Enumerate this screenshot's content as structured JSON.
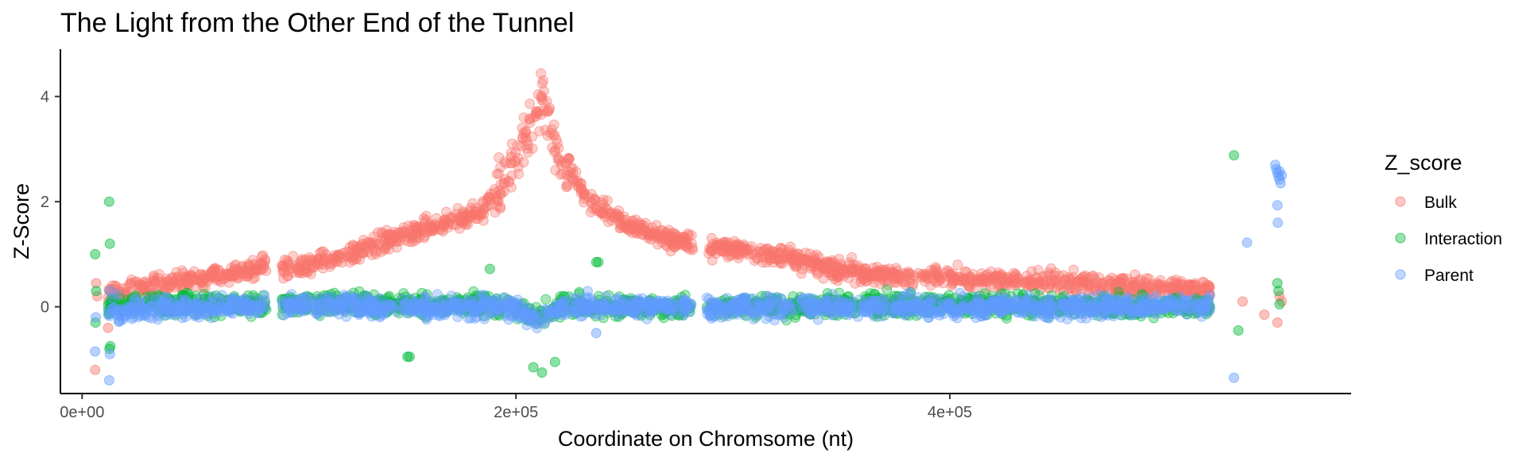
{
  "chart_data": {
    "type": "scatter",
    "title": "The Light from the Other End of the Tunnel",
    "xlabel": "Coordinate on Chromsome (nt)",
    "ylabel": "Z-Score",
    "xlim": [
      -10000,
      585000
    ],
    "ylim": [
      -1.65,
      4.9
    ],
    "x_ticks": [
      0,
      200000,
      400000
    ],
    "x_tick_labels": [
      "0e+00",
      "2e+05",
      "4e+05"
    ],
    "y_ticks": [
      0,
      2,
      4
    ],
    "y_tick_labels": [
      "0",
      "2",
      "4"
    ],
    "grid": false,
    "legend": {
      "title": "Z_score",
      "placement": "right",
      "entries": [
        "Bulk",
        "Interaction",
        "Parent"
      ]
    },
    "point_alpha": 0.35,
    "series": [
      {
        "name": "Bulk",
        "color": "#F8766D",
        "trend": [
          [
            6000,
            0.22
          ],
          [
            12000,
            0.25
          ],
          [
            30000,
            0.38
          ],
          [
            50000,
            0.5
          ],
          [
            70000,
            0.68
          ],
          [
            85000,
            0.78
          ],
          [
            95000,
            0.72
          ],
          [
            110000,
            0.85
          ],
          [
            125000,
            1.0
          ],
          [
            140000,
            1.25
          ],
          [
            155000,
            1.45
          ],
          [
            170000,
            1.6
          ],
          [
            185000,
            1.85
          ],
          [
            195000,
            2.4
          ],
          [
            205000,
            3.2
          ],
          [
            212000,
            4.0
          ],
          [
            220000,
            2.8
          ],
          [
            235000,
            2.0
          ],
          [
            250000,
            1.6
          ],
          [
            270000,
            1.3
          ],
          [
            282000,
            1.2
          ],
          [
            290000,
            1.1
          ],
          [
            310000,
            1.05
          ],
          [
            330000,
            0.88
          ],
          [
            350000,
            0.7
          ],
          [
            370000,
            0.6
          ],
          [
            400000,
            0.55
          ],
          [
            430000,
            0.5
          ],
          [
            460000,
            0.45
          ],
          [
            490000,
            0.38
          ],
          [
            520000,
            0.32
          ]
        ],
        "extra_points": [
          [
            6000,
            -1.2
          ],
          [
            6500,
            0.45
          ],
          [
            7000,
            0.2
          ],
          [
            12000,
            -0.4
          ],
          [
            535000,
            0.1
          ],
          [
            545000,
            -0.15
          ],
          [
            551000,
            -0.3
          ],
          [
            552000,
            0.2
          ],
          [
            553000,
            0.1
          ]
        ]
      },
      {
        "name": "Interaction",
        "color": "#00BA38",
        "trend": [
          [
            6000,
            0.0
          ],
          [
            12000,
            0.05
          ],
          [
            60000,
            0.05
          ],
          [
            100000,
            0.05
          ],
          [
            140000,
            0.05
          ],
          [
            180000,
            0.05
          ],
          [
            200000,
            0.0
          ],
          [
            210000,
            -0.2
          ],
          [
            220000,
            0.0
          ],
          [
            260000,
            0.0
          ],
          [
            300000,
            0.0
          ],
          [
            400000,
            0.05
          ],
          [
            520000,
            0.0
          ]
        ],
        "extra_points": [
          [
            6000,
            1.0
          ],
          [
            6200,
            -0.3
          ],
          [
            6500,
            0.3
          ],
          [
            12500,
            2.0
          ],
          [
            12800,
            1.2
          ],
          [
            12600,
            -0.8
          ],
          [
            13000,
            -0.75
          ],
          [
            150000,
            -0.95
          ],
          [
            151000,
            -0.95
          ],
          [
            208000,
            -1.15
          ],
          [
            212000,
            -1.25
          ],
          [
            218000,
            -1.05
          ],
          [
            237000,
            0.85
          ],
          [
            238000,
            0.85
          ],
          [
            188000,
            0.72
          ],
          [
            531000,
            2.88
          ],
          [
            533000,
            -0.45
          ],
          [
            551000,
            0.45
          ],
          [
            551500,
            0.3
          ],
          [
            552000,
            0.05
          ]
        ]
      },
      {
        "name": "Parent",
        "color": "#619CFF",
        "trend": [
          [
            6000,
            0.0
          ],
          [
            12000,
            -0.05
          ],
          [
            60000,
            0.0
          ],
          [
            100000,
            0.0
          ],
          [
            150000,
            0.0
          ],
          [
            200000,
            0.0
          ],
          [
            210000,
            -0.3
          ],
          [
            220000,
            0.0
          ],
          [
            300000,
            0.0
          ],
          [
            400000,
            0.0
          ],
          [
            520000,
            0.0
          ]
        ],
        "extra_points": [
          [
            6000,
            -0.85
          ],
          [
            6300,
            -0.2
          ],
          [
            12500,
            -1.4
          ],
          [
            12800,
            -0.9
          ],
          [
            12900,
            0.3
          ],
          [
            237000,
            -0.5
          ],
          [
            531000,
            -1.35
          ],
          [
            537000,
            1.22
          ],
          [
            550000,
            2.7
          ],
          [
            550500,
            2.62
          ],
          [
            551000,
            2.55
          ],
          [
            551500,
            2.48
          ],
          [
            552000,
            2.42
          ],
          [
            552500,
            2.35
          ],
          [
            553000,
            2.5
          ],
          [
            551000,
            1.93
          ],
          [
            551200,
            1.6
          ],
          [
            552000,
            2.58
          ]
        ]
      }
    ]
  }
}
